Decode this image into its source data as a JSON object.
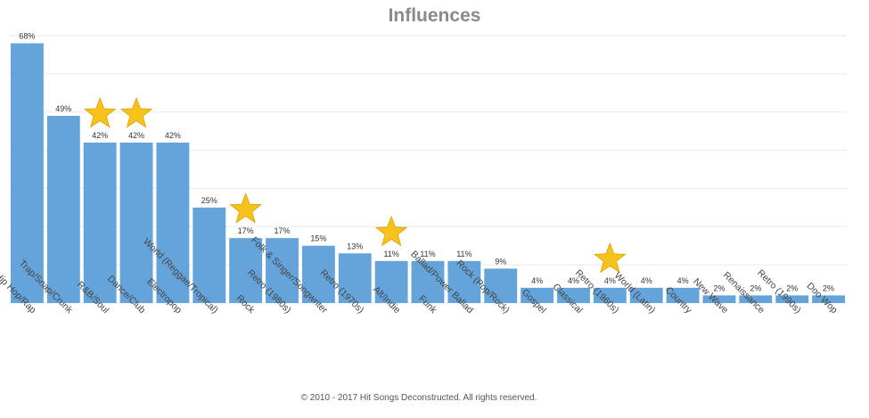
{
  "chart_data": {
    "type": "bar",
    "title": "Influences",
    "xlabel": "",
    "ylabel": "",
    "ylim": [
      0,
      70
    ],
    "grid": true,
    "value_suffix": "%",
    "categories": [
      "Hip Hop/Rap",
      "Trap/Snap/Crunk",
      "R&B/Soul",
      "Dance/Club",
      "Electropop",
      "World (Reggae/Tropical)",
      "Rock",
      "Retro (1980s)",
      "Folk & Singer/Songwriter",
      "Retro (1970s)",
      "Alt/Indie",
      "Funk",
      "Ballad/Power Ballad",
      "Rock (Pop/Rock)",
      "Gospel",
      "Classical",
      "Retro (1960s)",
      "World (Latin)",
      "Country",
      "New Wave",
      "Renaissance",
      "Retro (1990s)",
      "Doo Wop"
    ],
    "values": [
      68,
      49,
      42,
      42,
      42,
      25,
      17,
      17,
      15,
      13,
      11,
      11,
      11,
      9,
      4,
      4,
      4,
      4,
      4,
      2,
      2,
      2,
      2
    ],
    "data_labels": [
      "68%",
      "49%",
      "42%",
      "42%",
      "42%",
      "25%",
      "17%",
      "17%",
      "15%",
      "13%",
      "11%",
      "11%",
      "11%",
      "9%",
      "4%",
      "4%",
      "4%",
      "4%",
      "4%",
      "2%",
      "2%",
      "2%",
      "2%"
    ],
    "starred": [
      "R&B/Soul",
      "Dance/Club",
      "Rock",
      "Alt/Indie",
      "Retro (1960s)"
    ],
    "colors": {
      "bar": "#65a4da",
      "star": "#f7c21b",
      "star_stroke": "#d9a300",
      "grid": "#eaeaea"
    }
  },
  "footer": {
    "copyright": "© 2010 - 2017 Hit Songs Deconstructed. All rights reserved."
  }
}
